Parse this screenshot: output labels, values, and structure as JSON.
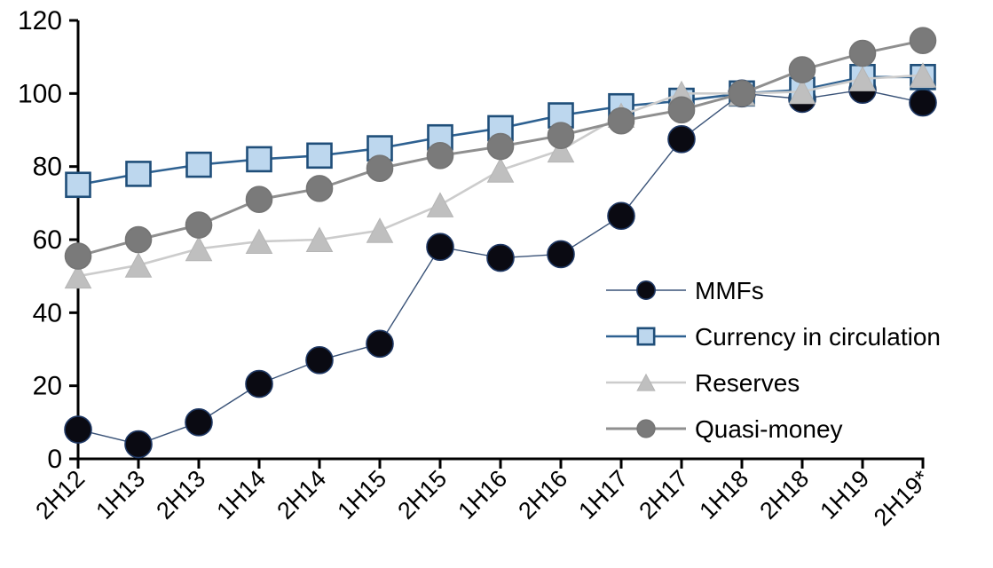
{
  "chart_data": {
    "type": "line",
    "title": "",
    "xlabel": "",
    "ylabel": "",
    "categories": [
      "2H12",
      "1H13",
      "2H13",
      "1H14",
      "2H14",
      "1H15",
      "2H15",
      "1H16",
      "2H16",
      "1H17",
      "2H17",
      "1H18",
      "2H18",
      "1H19",
      "2H19*"
    ],
    "series": [
      {
        "name": "MMFs",
        "marker": "circle",
        "marker_fill": "#0a0a12",
        "marker_stroke": "#1f3864",
        "line_color": "#3a5378",
        "line_width": 1.4,
        "marker_size": 30,
        "values": [
          8,
          4,
          10,
          20.5,
          27,
          31.5,
          58,
          55,
          56,
          66.5,
          87.5,
          100,
          98.5,
          101,
          97.5
        ]
      },
      {
        "name": "Currency in circulation",
        "marker": "square",
        "marker_fill": "#bdd7ee",
        "marker_stroke": "#1f4e79",
        "line_color": "#2e6191",
        "line_width": 2.6,
        "marker_size": 27,
        "values": [
          75,
          78,
          80.5,
          82,
          83,
          85,
          88,
          90.5,
          94,
          96.5,
          98,
          100,
          101,
          104.5,
          104.5
        ]
      },
      {
        "name": "Reserves",
        "marker": "triangle",
        "marker_fill": "#bfbfbf",
        "marker_stroke": "#b5b5b5",
        "line_color": "#cccccc",
        "line_width": 2.6,
        "marker_size": 29,
        "values": [
          50,
          53,
          57.5,
          59.5,
          60,
          62.5,
          69.5,
          79,
          84.5,
          94,
          100,
          100,
          100.5,
          104,
          105
        ]
      },
      {
        "name": "Quasi-money",
        "marker": "circle",
        "marker_fill": "#7a7a7a",
        "marker_stroke": "#757575",
        "line_color": "#8f8f8f",
        "line_width": 3,
        "marker_size": 29,
        "values": [
          55.5,
          60,
          64,
          71,
          74,
          79.5,
          83,
          85.5,
          88.5,
          92.5,
          95.5,
          100,
          106.5,
          111,
          114.5
        ]
      }
    ],
    "ylim": [
      0,
      120
    ],
    "yticks": [
      0,
      20,
      40,
      60,
      80,
      100,
      120
    ],
    "grid": false,
    "legend_position": "inside-right",
    "axis_color": "#000000",
    "legend": [
      "MMFs",
      "Currency in circulation",
      "Reserves",
      "Quasi-money"
    ]
  }
}
